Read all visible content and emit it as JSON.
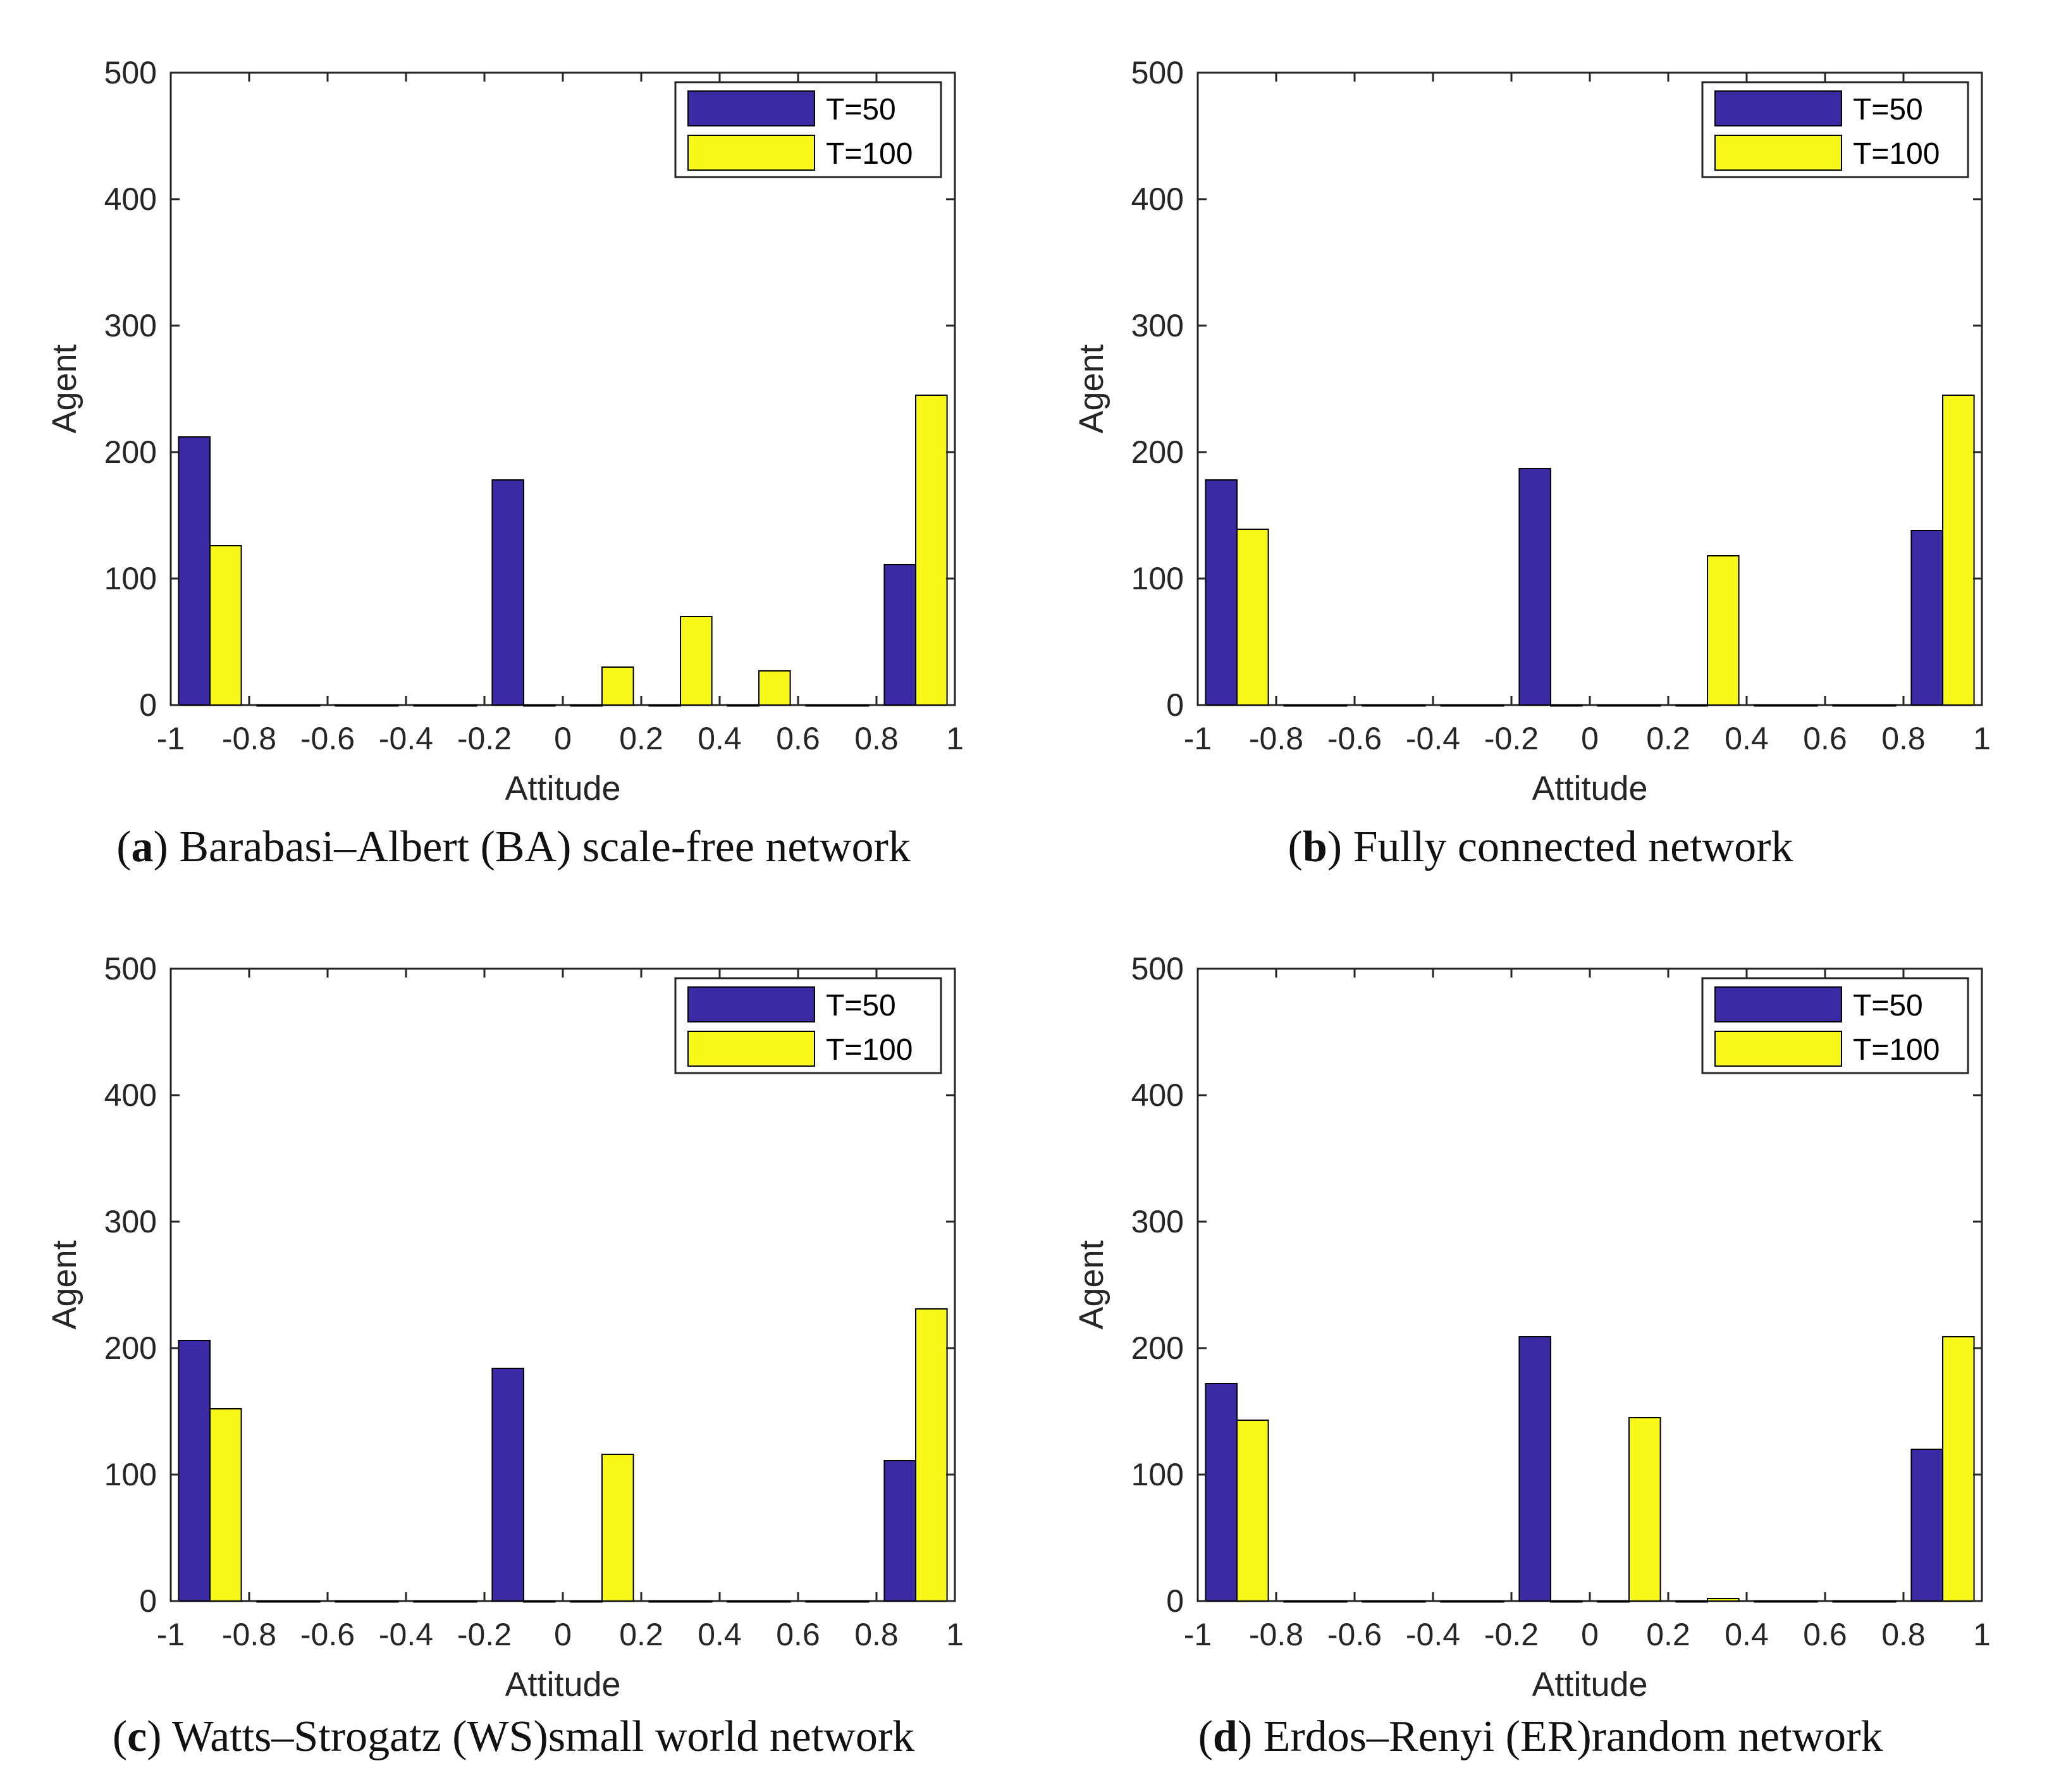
{
  "colors": {
    "series_1": "#3a2aa3",
    "series_2": "#f7f71a",
    "axis": "#262626"
  },
  "chart_data": [
    {
      "type": "bar",
      "panel_letter": "a",
      "caption": "Barabasi–Albert (BA) scale-free network",
      "xlabel": "Attitude",
      "ylabel": "Agent",
      "xlim": [
        -1,
        1
      ],
      "ylim": [
        0,
        500
      ],
      "xticks": [
        "-1",
        "-0.8",
        "-0.6",
        "-0.4",
        "-0.2",
        "0",
        "0.2",
        "0.4",
        "0.6",
        "0.8",
        "1"
      ],
      "yticks": [
        "0",
        "100",
        "200",
        "300",
        "400",
        "500"
      ],
      "legend": [
        "T=50",
        "T=100"
      ],
      "legend_position": "top-right",
      "bin_centers": [
        -0.9,
        -0.7,
        -0.5,
        -0.3,
        -0.1,
        0.1,
        0.3,
        0.5,
        0.7,
        0.9
      ],
      "series": [
        {
          "name": "T=50",
          "values": [
            212,
            0,
            0,
            0,
            178,
            0,
            0,
            0,
            0,
            111
          ]
        },
        {
          "name": "T=100",
          "values": [
            126,
            0,
            0,
            0,
            0,
            30,
            70,
            27,
            0,
            245
          ]
        }
      ]
    },
    {
      "type": "bar",
      "panel_letter": "b",
      "caption": "Fully connected network",
      "xlabel": "Attitude",
      "ylabel": "Agent",
      "xlim": [
        -1,
        1
      ],
      "ylim": [
        0,
        500
      ],
      "xticks": [
        "-1",
        "-0.8",
        "-0.6",
        "-0.4",
        "-0.2",
        "0",
        "0.2",
        "0.4",
        "0.6",
        "0.8",
        "1"
      ],
      "yticks": [
        "0",
        "100",
        "200",
        "300",
        "400",
        "500"
      ],
      "legend": [
        "T=50",
        "T=100"
      ],
      "legend_position": "top-right",
      "bin_centers": [
        -0.9,
        -0.7,
        -0.5,
        -0.3,
        -0.1,
        0.1,
        0.3,
        0.5,
        0.7,
        0.9
      ],
      "series": [
        {
          "name": "T=50",
          "values": [
            178,
            0,
            0,
            0,
            187,
            0,
            0,
            0,
            0,
            138
          ]
        },
        {
          "name": "T=100",
          "values": [
            139,
            0,
            0,
            0,
            0,
            0,
            118,
            0,
            0,
            245
          ]
        }
      ]
    },
    {
      "type": "bar",
      "panel_letter": "c",
      "caption": "Watts–Strogatz (WS)small world network",
      "xlabel": "Attitude",
      "ylabel": "Agent",
      "xlim": [
        -1,
        1
      ],
      "ylim": [
        0,
        500
      ],
      "xticks": [
        "-1",
        "-0.8",
        "-0.6",
        "-0.4",
        "-0.2",
        "0",
        "0.2",
        "0.4",
        "0.6",
        "0.8",
        "1"
      ],
      "yticks": [
        "0",
        "100",
        "200",
        "300",
        "400",
        "500"
      ],
      "legend": [
        "T=50",
        "T=100"
      ],
      "legend_position": "top-right",
      "bin_centers": [
        -0.9,
        -0.7,
        -0.5,
        -0.3,
        -0.1,
        0.1,
        0.3,
        0.5,
        0.7,
        0.9
      ],
      "series": [
        {
          "name": "T=50",
          "values": [
            206,
            0,
            0,
            0,
            184,
            0,
            0,
            0,
            0,
            111
          ]
        },
        {
          "name": "T=100",
          "values": [
            152,
            0,
            0,
            0,
            0,
            116,
            0,
            0,
            0,
            231
          ]
        }
      ]
    },
    {
      "type": "bar",
      "panel_letter": "d",
      "caption": "Erdos–Renyi (ER)random network",
      "xlabel": "Attitude",
      "ylabel": "Agent",
      "xlim": [
        -1,
        1
      ],
      "ylim": [
        0,
        500
      ],
      "xticks": [
        "-1",
        "-0.8",
        "-0.6",
        "-0.4",
        "-0.2",
        "0",
        "0.2",
        "0.4",
        "0.6",
        "0.8",
        "1"
      ],
      "yticks": [
        "0",
        "100",
        "200",
        "300",
        "400",
        "500"
      ],
      "legend": [
        "T=50",
        "T=100"
      ],
      "legend_position": "top-right",
      "bin_centers": [
        -0.9,
        -0.7,
        -0.5,
        -0.3,
        -0.1,
        0.1,
        0.3,
        0.5,
        0.7,
        0.9
      ],
      "series": [
        {
          "name": "T=50",
          "values": [
            172,
            0,
            0,
            0,
            209,
            0,
            0,
            0,
            0,
            120
          ]
        },
        {
          "name": "T=100",
          "values": [
            143,
            0,
            0,
            0,
            0,
            145,
            2,
            0,
            0,
            209
          ]
        }
      ]
    }
  ]
}
